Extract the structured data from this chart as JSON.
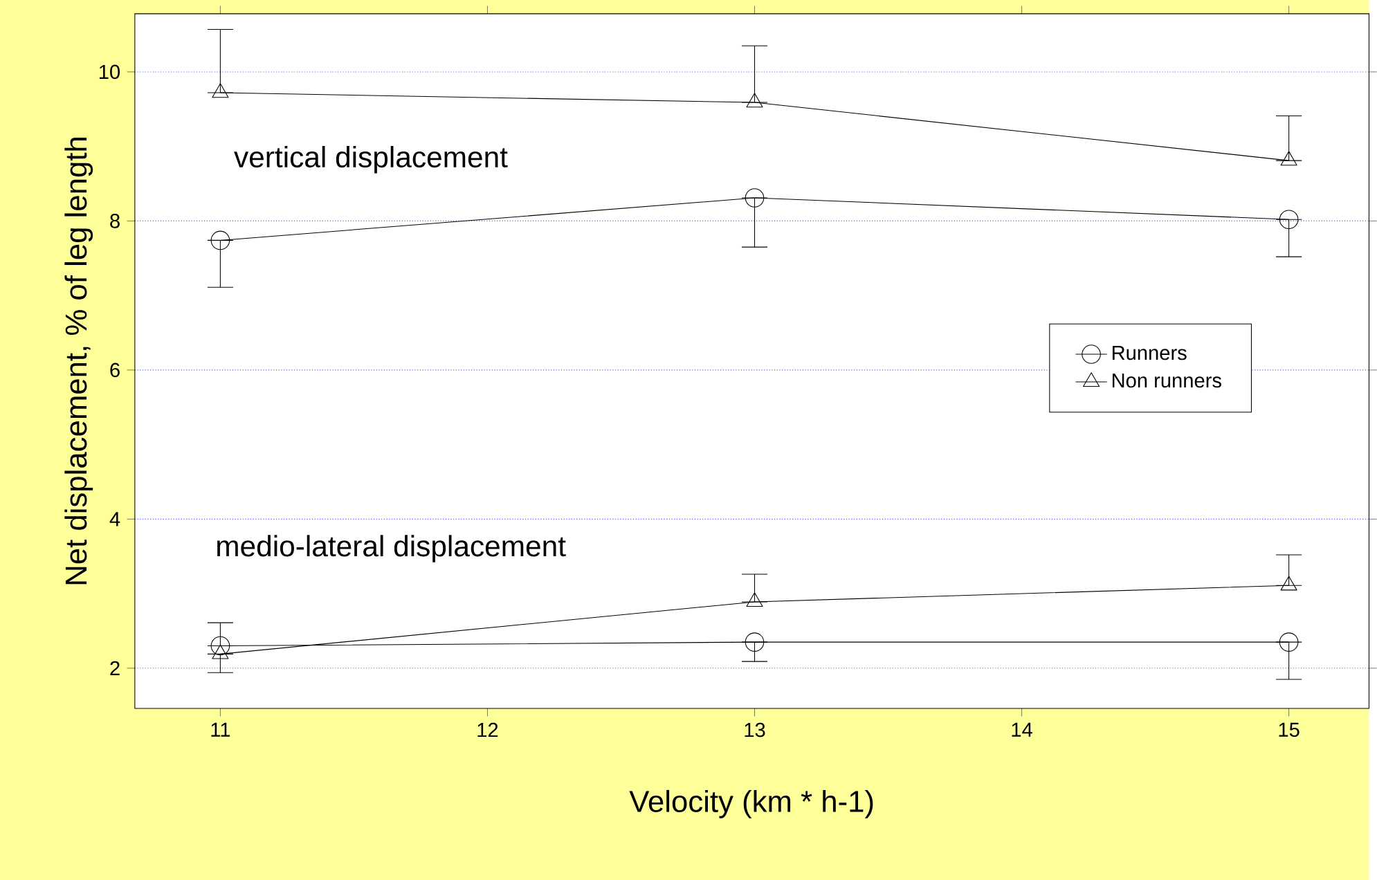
{
  "chart_data": {
    "type": "line",
    "xlabel": "Velocity (km * h-1)",
    "ylabel": "Net displacement, % of leg length",
    "xlim": [
      10.68,
      15.3
    ],
    "ylim": [
      1.46,
      10.78
    ],
    "xticks": [
      11,
      12,
      13,
      14,
      15
    ],
    "yticks": [
      2,
      4,
      6,
      8,
      10
    ],
    "grid": "y",
    "legend": "right",
    "line_style": "solid",
    "annotations": [
      "vertical displacement",
      "medio-lateral displacement"
    ],
    "series": [
      {
        "name": "Runners",
        "color": "#000000",
        "marker": "circle",
        "x": [
          11,
          13,
          15
        ],
        "values": [
          7.74,
          8.31,
          8.02
        ],
        "errors": [
          [
            7.11,
            7.74
          ],
          [
            7.65,
            8.31
          ],
          [
            7.52,
            8.02
          ]
        ]
      },
      {
        "name": "Non runners",
        "color": "#000000",
        "marker": "triangle",
        "x": [
          11,
          13,
          15
        ],
        "values": [
          9.72,
          9.59,
          8.81
        ],
        "errors": [
          [
            9.72,
            10.57
          ],
          [
            9.59,
            10.35
          ],
          [
            8.81,
            9.41
          ]
        ]
      },
      {
        "color": "#000000",
        "marker": "circle",
        "x": [
          11,
          13,
          15
        ],
        "values": [
          2.3,
          2.35,
          2.35
        ],
        "errors": [
          [
            2.3,
            2.61
          ],
          [
            2.09,
            2.35
          ],
          [
            1.85,
            2.35
          ]
        ]
      },
      {
        "color": "#000000",
        "marker": "triangle",
        "x": [
          11,
          13,
          15
        ],
        "values": [
          2.19,
          2.89,
          3.11
        ],
        "errors": [
          [
            1.94,
            2.19
          ],
          [
            2.89,
            3.26
          ],
          [
            3.11,
            3.52
          ]
        ]
      }
    ]
  }
}
